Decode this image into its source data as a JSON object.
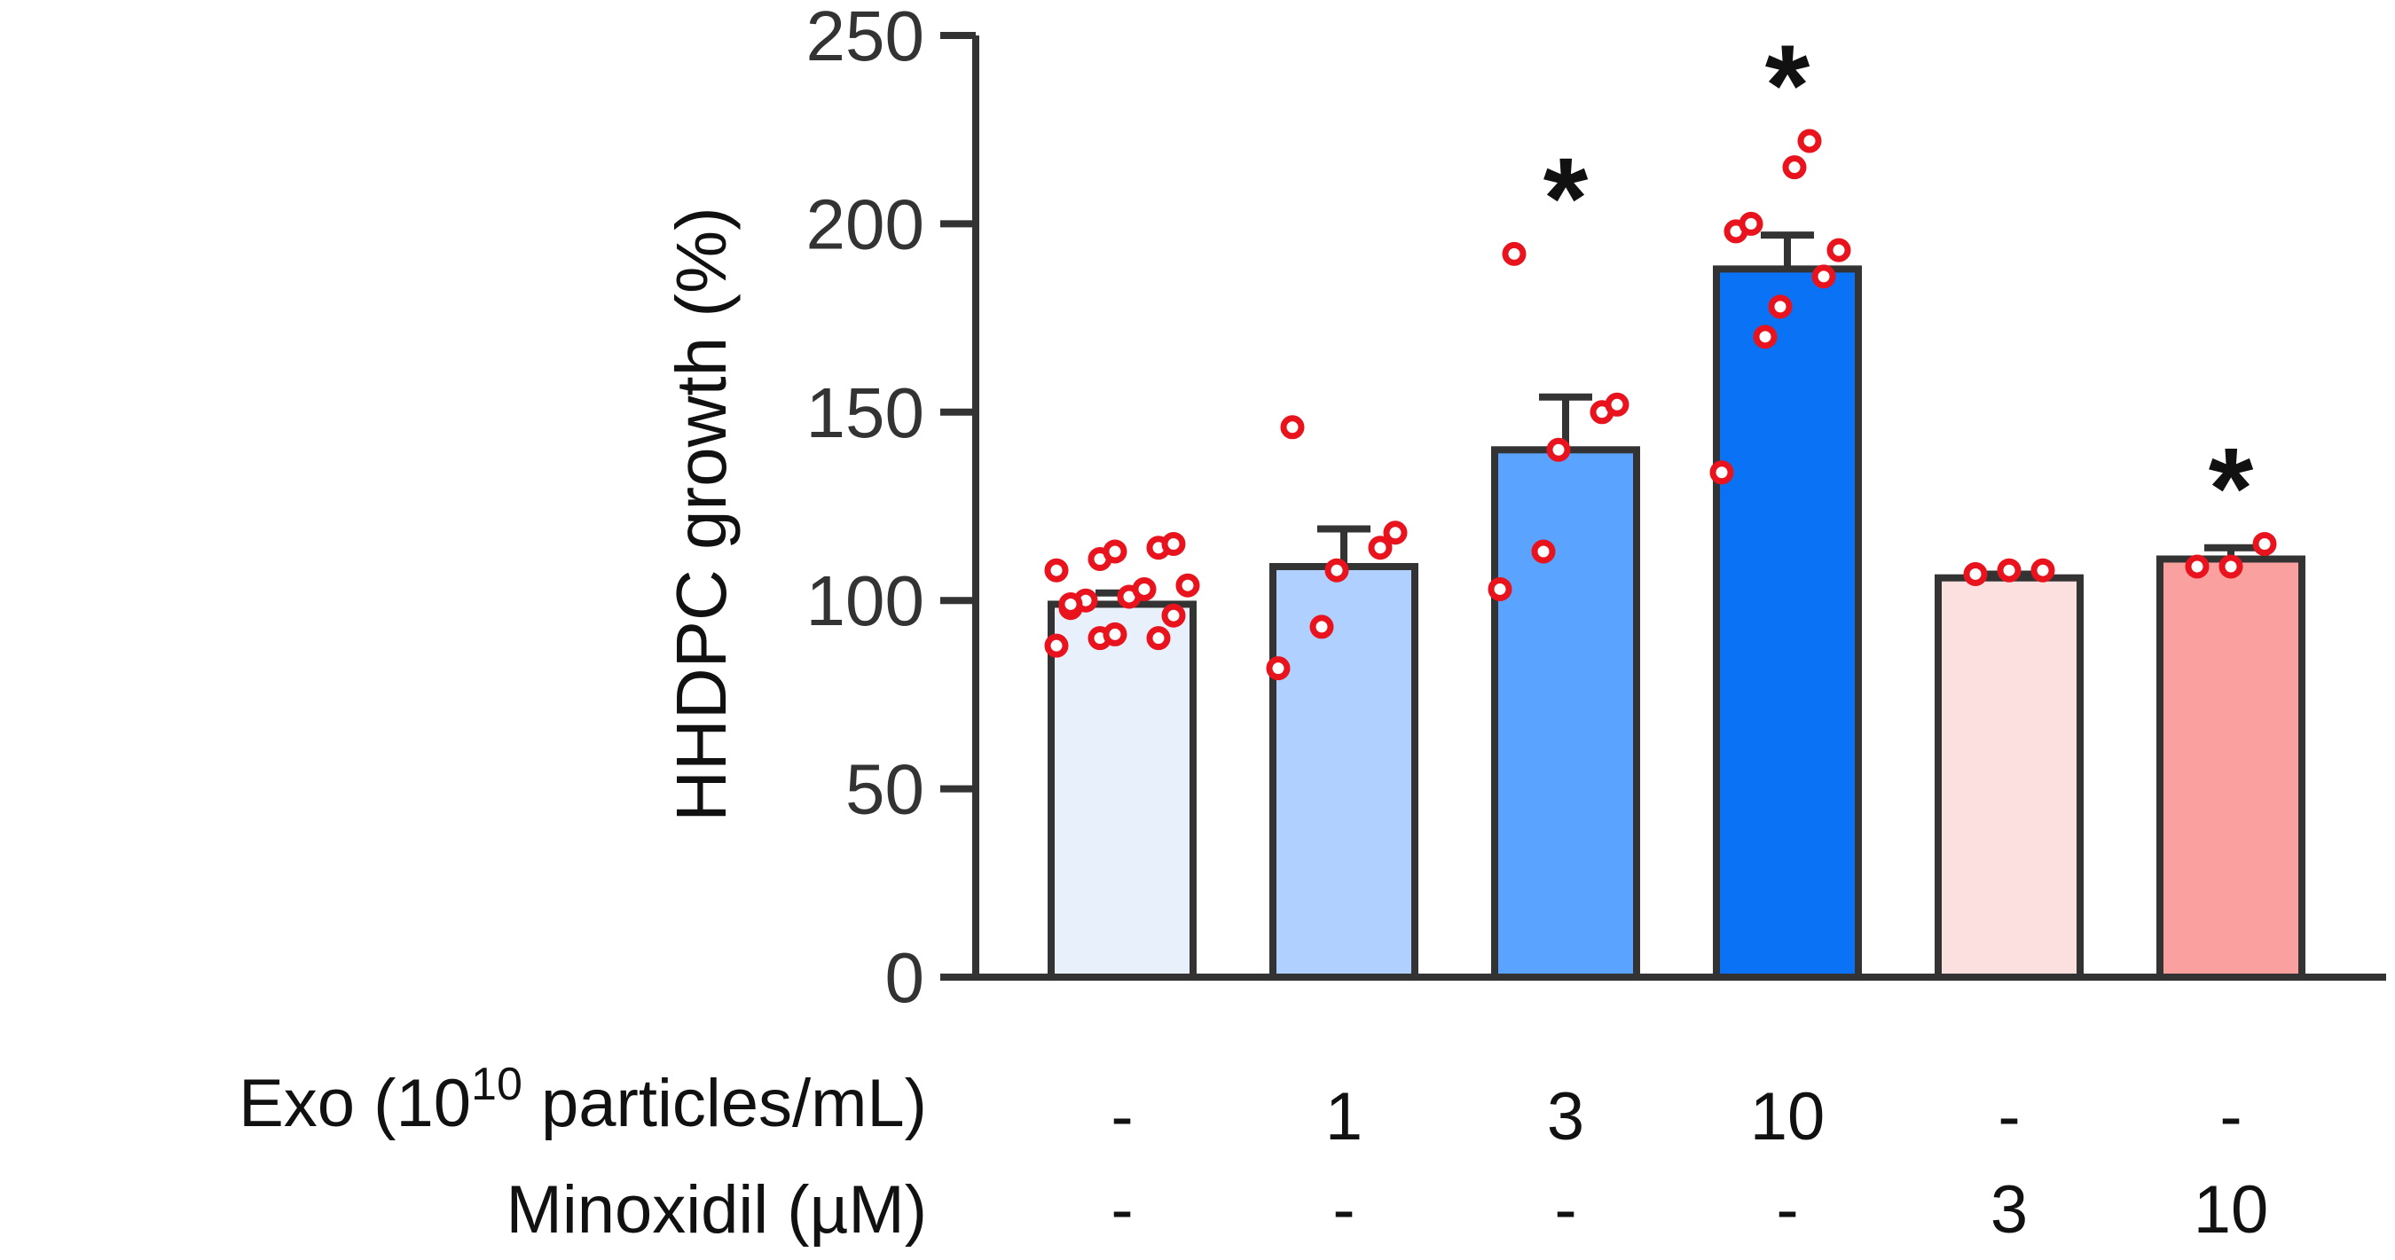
{
  "chart_data": {
    "type": "bar",
    "ylabel": "HHDPC growth (%)",
    "ylim": [
      0,
      250
    ],
    "yticks": [
      0,
      50,
      100,
      150,
      200,
      250
    ],
    "grid": false,
    "legend": "none",
    "bars": [
      {
        "mean": 99,
        "sem": 3,
        "fill": "#E8F0FC",
        "star": "",
        "points": [
          88,
          90,
          91,
          90,
          96,
          98,
          100,
          101,
          103,
          104,
          108,
          111,
          113,
          114,
          115,
          99
        ]
      },
      {
        "mean": 109,
        "sem": 10,
        "fill": "#B0D1FF",
        "star": "",
        "points": [
          82,
          93,
          108,
          114,
          118,
          146
        ]
      },
      {
        "mean": 140,
        "sem": 14,
        "fill": "#5AA3FF",
        "star": "*",
        "points": [
          103,
          113,
          140,
          150,
          152,
          192
        ]
      },
      {
        "mean": 188,
        "sem": 9,
        "fill": "#0A73F5",
        "star": "*",
        "points": [
          134,
          170,
          178,
          186,
          193,
          198,
          200,
          215,
          222
        ]
      },
      {
        "mean": 106,
        "sem": 1,
        "fill": "#FCDFDF",
        "star": "",
        "points": [
          107,
          108,
          108
        ]
      },
      {
        "mean": 111,
        "sem": 3,
        "fill": "#FAA19F",
        "star": "*",
        "points": [
          109,
          109,
          115
        ]
      }
    ],
    "rows": [
      {
        "label": "Exo (10",
        "sup": "10",
        "label_tail": " particles/mL)",
        "values": [
          "-",
          "1",
          "3",
          "10",
          "-",
          "-"
        ]
      },
      {
        "label": "Minoxidil (µM)",
        "values": [
          "-",
          "-",
          "-",
          "-",
          "3",
          "10"
        ]
      }
    ],
    "colors": {
      "axis": "#333333",
      "bar_edge": "#333333",
      "point": "#E8131C",
      "star": "#111111"
    }
  }
}
